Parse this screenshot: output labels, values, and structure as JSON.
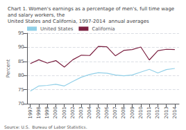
{
  "chart_data": {
    "type": "line",
    "title": "Chart 1. Women's earnings as a percentage of men's, full time wage and salary workers, the\nUnited States and California, 1997-2014  annual averages",
    "ylabel": "Percent",
    "annotations": [
      "Source: U.S.  Bureau of Labor Statistics."
    ],
    "x": [
      1997,
      1998,
      1999,
      2000,
      2001,
      2002,
      2003,
      2004,
      2005,
      2006,
      2007,
      2008,
      2009,
      2010,
      2011,
      2012,
      2013,
      2014
    ],
    "series": [
      {
        "name": "United States",
        "color": "#92d0e8",
        "values": [
          74.5,
          76.3,
          76.5,
          76.9,
          76.3,
          77.9,
          79.4,
          80.4,
          81.0,
          80.8,
          80.2,
          79.9,
          80.2,
          81.2,
          82.2,
          80.9,
          82.1,
          82.5
        ]
      },
      {
        "name": "California",
        "color": "#7b2040",
        "values": [
          84.2,
          85.6,
          84.4,
          85.3,
          83.0,
          85.6,
          87.2,
          87.1,
          90.3,
          90.2,
          87.0,
          88.9,
          89.2,
          90.1,
          85.5,
          88.8,
          89.3,
          89.2
        ]
      }
    ],
    "xlim": [
      1996.6,
      2014.5
    ],
    "xticks": [
      1997,
      1998,
      1999,
      2000,
      2001,
      2002,
      2003,
      2004,
      2005,
      2006,
      2007,
      2008,
      2009,
      2010,
      2011,
      2012,
      2013,
      2014
    ],
    "ylim": [
      70,
      95
    ],
    "yticks": [
      70,
      75,
      80,
      85,
      90,
      95
    ],
    "grid": true,
    "legend": "upper left"
  }
}
